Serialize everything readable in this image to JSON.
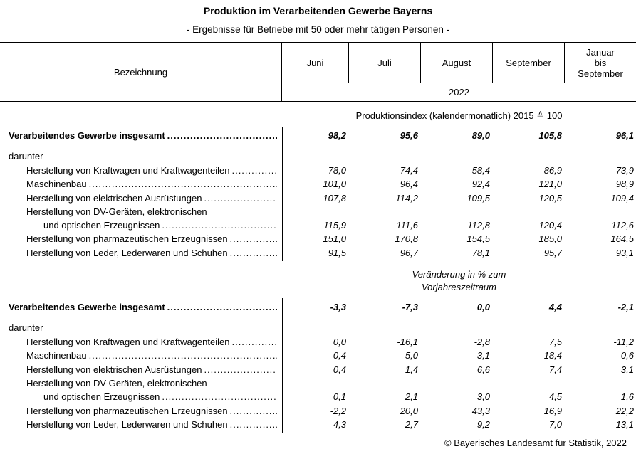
{
  "page": {
    "title": "Produktion im Verarbeitenden Gewerbe Bayerns",
    "subtitle": "- Ergebnisse für Betriebe mit 50 oder mehr tätigen Personen -",
    "copyright": "© Bayerisches Landesamt für Statistik, 2022"
  },
  "table": {
    "label_column_header": "Bezeichnung",
    "month_columns": [
      "Juni",
      "Juli",
      "August",
      "September",
      "Januar\nbis\nSeptember"
    ],
    "year": "2022",
    "sections": [
      {
        "heading_lines": [
          "Produktionsindex (kalendermonatlich) 2015 ≙ 100"
        ],
        "heading_style": "normal",
        "rows": [
          {
            "label": "Verarbeitendes Gewerbe insgesamt",
            "style": "total",
            "indent": 0,
            "leader": true,
            "values": [
              "98,2",
              "95,6",
              "89,0",
              "105,8",
              "96,1"
            ]
          },
          {
            "label": "darunter",
            "style": "group",
            "indent": 0,
            "leader": false,
            "values": null
          },
          {
            "label": "Herstellung von Kraftwagen und Kraftwagenteilen",
            "style": "item",
            "indent": 1,
            "leader": true,
            "values": [
              "78,0",
              "74,4",
              "58,4",
              "86,9",
              "73,9"
            ]
          },
          {
            "label": "Maschinenbau",
            "style": "item",
            "indent": 1,
            "leader": true,
            "values": [
              "101,0",
              "96,4",
              "92,4",
              "121,0",
              "98,9"
            ]
          },
          {
            "label": "Herstellung von elektrischen Ausrüstungen",
            "style": "item",
            "indent": 1,
            "leader": true,
            "values": [
              "107,8",
              "114,2",
              "109,5",
              "120,5",
              "109,4"
            ]
          },
          {
            "label": "Herstellung von DV-Geräten, elektronischen",
            "style": "item",
            "indent": 1,
            "leader": false,
            "values": null
          },
          {
            "label": "und optischen Erzeugnissen",
            "style": "item",
            "indent": 2,
            "leader": true,
            "values": [
              "115,9",
              "111,6",
              "112,8",
              "120,4",
              "112,6"
            ]
          },
          {
            "label": "Herstellung von pharmazeutischen Erzeugnissen",
            "style": "item",
            "indent": 1,
            "leader": true,
            "values": [
              "151,0",
              "170,8",
              "154,5",
              "185,0",
              "164,5"
            ]
          },
          {
            "label": "Herstellung von Leder, Lederwaren und Schuhen",
            "style": "item",
            "indent": 1,
            "leader": true,
            "values": [
              "91,5",
              "96,7",
              "78,1",
              "95,7",
              "93,1"
            ]
          }
        ]
      },
      {
        "heading_lines": [
          "Veränderung in % zum",
          "Vorjahreszeitraum"
        ],
        "heading_style": "italic",
        "rows": [
          {
            "label": "Verarbeitendes Gewerbe insgesamt",
            "style": "total",
            "indent": 0,
            "leader": true,
            "values": [
              "-3,3",
              "-7,3",
              "0,0",
              "4,4",
              "-2,1"
            ]
          },
          {
            "label": "darunter",
            "style": "group",
            "indent": 0,
            "leader": false,
            "values": null
          },
          {
            "label": "Herstellung von Kraftwagen und Kraftwagenteilen",
            "style": "item",
            "indent": 1,
            "leader": true,
            "values": [
              "0,0",
              "-16,1",
              "-2,8",
              "7,5",
              "-11,2"
            ]
          },
          {
            "label": "Maschinenbau",
            "style": "item",
            "indent": 1,
            "leader": true,
            "values": [
              "-0,4",
              "-5,0",
              "-3,1",
              "18,4",
              "0,6"
            ]
          },
          {
            "label": "Herstellung von elektrischen Ausrüstungen",
            "style": "item",
            "indent": 1,
            "leader": true,
            "values": [
              "0,4",
              "1,4",
              "6,6",
              "7,4",
              "3,1"
            ]
          },
          {
            "label": "Herstellung von DV-Geräten, elektronischen",
            "style": "item",
            "indent": 1,
            "leader": false,
            "values": null
          },
          {
            "label": "und optischen Erzeugnissen",
            "style": "item",
            "indent": 2,
            "leader": true,
            "values": [
              "0,1",
              "2,1",
              "3,0",
              "4,5",
              "1,6"
            ]
          },
          {
            "label": "Herstellung von pharmazeutischen Erzeugnissen",
            "style": "item",
            "indent": 1,
            "leader": true,
            "values": [
              "-2,2",
              "20,0",
              "43,3",
              "16,9",
              "22,2"
            ]
          },
          {
            "label": "Herstellung von Leder, Lederwaren und Schuhen",
            "style": "item",
            "indent": 1,
            "leader": true,
            "values": [
              "4,3",
              "2,7",
              "9,2",
              "7,0",
              "13,1"
            ]
          }
        ]
      }
    ]
  }
}
